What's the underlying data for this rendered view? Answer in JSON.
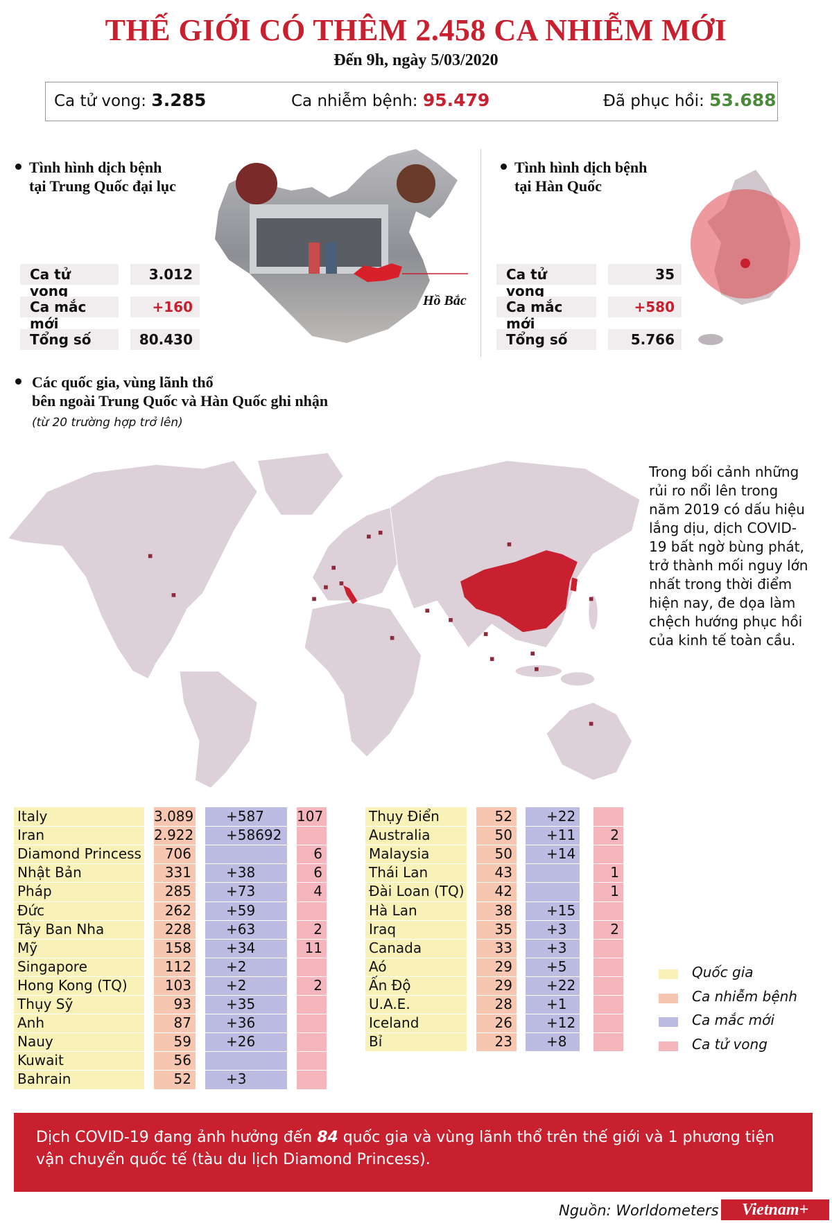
{
  "header": {
    "title": "THẾ GIỚI CÓ THÊM 2.458 CA NHIỄM MỚI",
    "subtitle": "Đến 9h, ngày 5/03/2020"
  },
  "stats": [
    {
      "label": "Ca tử vong:",
      "value": "3.285"
    },
    {
      "label": "Ca nhiễm bệnh:",
      "value": "95.479"
    },
    {
      "label": "Đã phục hồi:",
      "value": "53.688"
    }
  ],
  "china": {
    "heading": [
      "Tình hình dịch bệnh",
      "tại Trung Quốc đại lục"
    ],
    "region": "Hồ Bắc",
    "rows": [
      {
        "label": "Ca tử vong",
        "value": "3.012"
      },
      {
        "label": "Ca mắc mới",
        "value": "+160"
      },
      {
        "label": "Tổng số",
        "value": "80.430"
      }
    ]
  },
  "korea": {
    "heading": [
      "Tình hình dịch bệnh",
      "tại Hàn Quốc"
    ],
    "rows": [
      {
        "label": "Ca tử vong",
        "value": "35"
      },
      {
        "label": "Ca mắc mới",
        "value": "+580"
      },
      {
        "label": "Tổng số",
        "value": "5.766"
      }
    ]
  },
  "world": {
    "heading": [
      "Các quốc gia, vùng lãnh thổ",
      "bên ngoài Trung Quốc và Hàn Quốc ghi nhận"
    ],
    "note": "(từ 20 trường hợp trở lên)",
    "paragraph": "Trong bối cảnh những rủi ro nổi lên trong năm 2019 có dấu hiệu lắng dịu, dịch COVID-19 bất ngờ bùng phát, trở thành mối nguy lớn nhất trong thời điểm hiện nay, đe dọa làm chệch hướng phục hồi của kinh tế toàn cầu."
  },
  "table_left": {
    "rows": [
      [
        "Italy",
        "3.089",
        "+587",
        "107"
      ],
      [
        "Iran",
        "2.922",
        "+58692",
        null
      ],
      [
        "Diamond Princess",
        "706",
        null,
        "6"
      ],
      [
        "Nhật Bản",
        "331",
        "+38",
        "6"
      ],
      [
        "Pháp",
        "285",
        "+73",
        "4"
      ],
      [
        "Đức",
        "262",
        "+59",
        null
      ],
      [
        "Tây Ban Nha",
        "228",
        "+63",
        "2"
      ],
      [
        "Mỹ",
        "158",
        "+34",
        "11"
      ],
      [
        "Singapore",
        "112",
        "+2",
        null
      ],
      [
        "Hong Kong (TQ)",
        "103",
        "+2",
        "2"
      ],
      [
        "Thụy Sỹ",
        "93",
        "+35",
        null
      ],
      [
        "Anh",
        "87",
        "+36",
        null
      ],
      [
        "Nauy",
        "59",
        "+26",
        null
      ],
      [
        "Kuwait",
        "56",
        null,
        null
      ],
      [
        "Bahrain",
        "52",
        "+3",
        null
      ]
    ]
  },
  "table_right": {
    "rows": [
      [
        "Thụy Điển",
        "52",
        "+22",
        null
      ],
      [
        "Australia",
        "50",
        "+11",
        "2"
      ],
      [
        "Malaysia",
        "50",
        "+14",
        null
      ],
      [
        "Thái Lan",
        "43",
        null,
        "1"
      ],
      [
        "Đài Loan (TQ)",
        "42",
        null,
        "1"
      ],
      [
        "Hà Lan",
        "38",
        "+15",
        null
      ],
      [
        "Iraq",
        "35",
        "+3",
        "2"
      ],
      [
        "Canada",
        "33",
        "+3",
        null
      ],
      [
        "Aó",
        "29",
        "+5",
        null
      ],
      [
        "Ấn Độ",
        "29",
        "+22",
        null
      ],
      [
        "U.A.E.",
        "28",
        "+1",
        null
      ],
      [
        "Iceland",
        "26",
        "+12",
        null
      ],
      [
        "Bỉ",
        "23",
        "+8",
        null
      ]
    ]
  },
  "legend": [
    "Quốc gia",
    "Ca nhiễm bệnh",
    "Ca mắc mới",
    "Ca tử vong"
  ],
  "footer": {
    "parts": [
      "Dịch COVID-19 đang ảnh hưởng đến ",
      "84",
      " quốc gia và vùng lãnh thổ trên thế giới và 1 phương tiện vận chuyển quốc tế (tàu du lịch Diamond Princess)."
    ]
  },
  "source": "Nguồn: Worldometers",
  "logo": "Vietnam+"
}
